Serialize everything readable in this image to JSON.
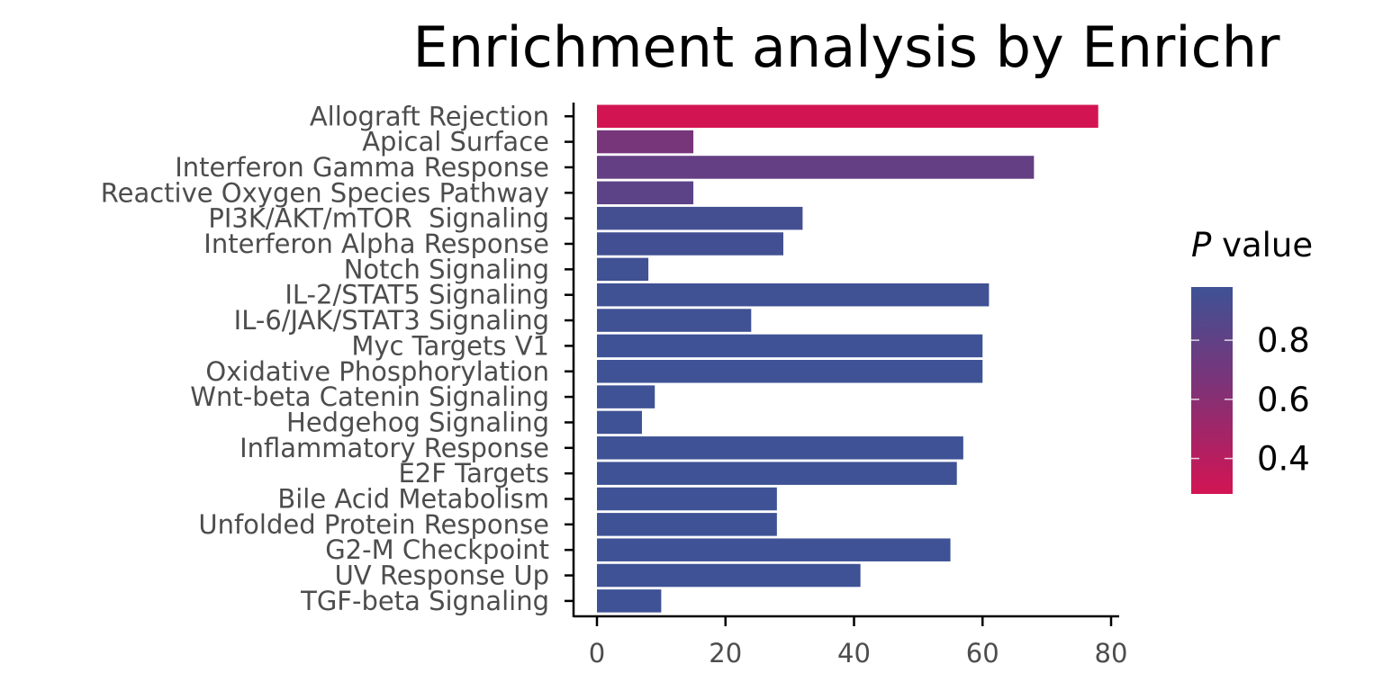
{
  "chart_data": {
    "type": "bar",
    "orientation": "horizontal",
    "title": "Enrichment analysis by Enrichr",
    "xlabel": "",
    "ylabel": "",
    "xlim": [
      0,
      81
    ],
    "xticks": [
      0,
      20,
      40,
      60,
      80
    ],
    "grid": false,
    "categories": [
      "Allograft Rejection",
      "Apical Surface",
      "Interferon Gamma Response",
      "Reactive Oxygen Species Pathway",
      "PI3K/AKT/mTOR  Signaling",
      "Interferon Alpha Response",
      "Notch Signaling",
      "IL-2/STAT5 Signaling",
      "IL-6/JAK/STAT3 Signaling",
      "Myc Targets V1",
      "Oxidative Phosphorylation",
      "Wnt-beta Catenin Signaling",
      "Hedgehog Signaling",
      "Inflammatory Response",
      "E2F Targets",
      "Bile Acid Metabolism",
      "Unfolded Protein Response",
      "G2-M Checkpoint",
      "UV Response Up",
      "TGF-beta Signaling"
    ],
    "values": [
      78,
      15,
      68,
      15,
      32,
      29,
      8,
      61,
      24,
      60,
      60,
      9,
      7,
      57,
      56,
      28,
      28,
      55,
      41,
      10
    ],
    "p_values": [
      0.28,
      0.68,
      0.78,
      0.82,
      0.95,
      0.96,
      0.97,
      0.97,
      0.97,
      0.98,
      0.98,
      0.98,
      0.98,
      0.98,
      0.98,
      0.98,
      0.98,
      0.98,
      0.98,
      0.98
    ],
    "color_scale": {
      "title_italic": "P",
      "title_rest": " value",
      "min": 0.28,
      "max": 0.98,
      "low_color": "#d31453",
      "mid_color": "#7a3479",
      "high_color": "#3e5295",
      "ticks": [
        0.4,
        0.6,
        0.8
      ],
      "tick_labels": [
        "0.4",
        "0.6",
        "0.8"
      ],
      "legend_position": "right"
    }
  }
}
